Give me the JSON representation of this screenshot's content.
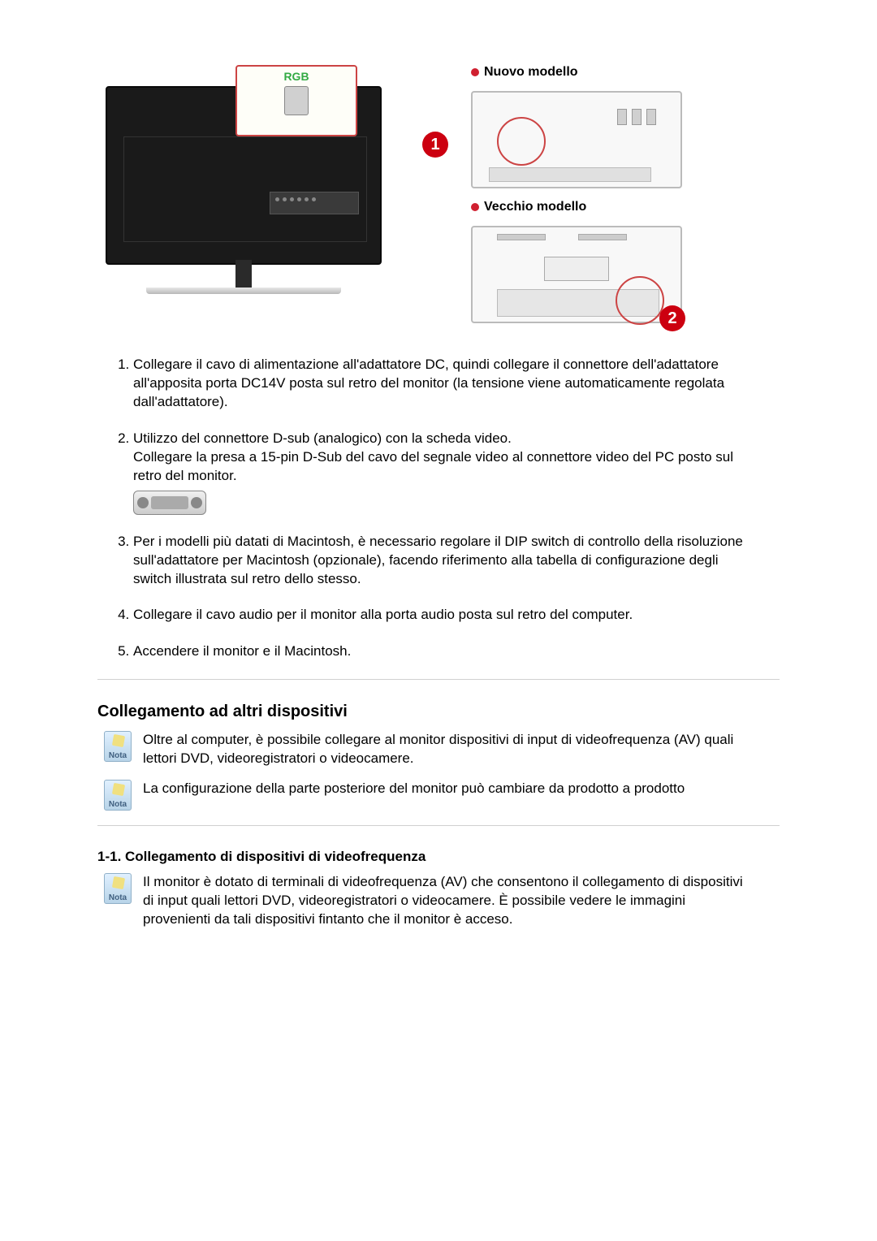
{
  "diagram": {
    "rgb_label": "RGB",
    "nuovo_label": "Nuovo modello",
    "vecchio_label": "Vecchio modello",
    "marker1": "1",
    "marker2": "2"
  },
  "steps": {
    "item1": "Collegare il cavo di alimentazione all'adattatore DC, quindi collegare il connettore dell'adattatore all'apposita porta DC14V posta sul retro del monitor (la tensione viene automaticamente regolata dall'adattatore).",
    "item2a": "Utilizzo del connettore D-sub (analogico) con la scheda video.",
    "item2b": "Collegare la presa a 15-pin D-Sub del cavo del segnale video al connettore video del PC posto sul retro del monitor.",
    "item3": "Per i modelli più datati di Macintosh, è necessario regolare il DIP switch di controllo della risoluzione sull'adattatore per Macintosh (opzionale), facendo riferimento alla tabella di configurazione degli switch illustrata sul retro dello stesso.",
    "item4": "Collegare il cavo audio per il monitor alla porta audio posta sul retro del computer.",
    "item5": "Accendere il monitor e il Macintosh."
  },
  "section": {
    "title": "Collegamento ad altri dispositivi",
    "note1": "Oltre al computer, è possibile collegare al monitor dispositivi di input di videofrequenza (AV) quali lettori DVD, videoregistratori o videocamere.",
    "note2": "La configurazione della parte posteriore del monitor può cambiare da prodotto a prodotto"
  },
  "subsection": {
    "title": "1-1. Collegamento di dispositivi di videofrequenza",
    "note": "Il monitor è dotato di terminali di videofrequenza (AV) che consentono il collegamento di dispositivi di input quali lettori DVD, videoregistratori o videocamere. È possibile vedere le immagini provenienti da tali dispositivi fintanto che il monitor è acceso."
  },
  "icon_label": "Nota",
  "colors": {
    "accent_red": "#cc0010",
    "callout_border": "#cc4444",
    "rgb_text": "#33aa44"
  }
}
